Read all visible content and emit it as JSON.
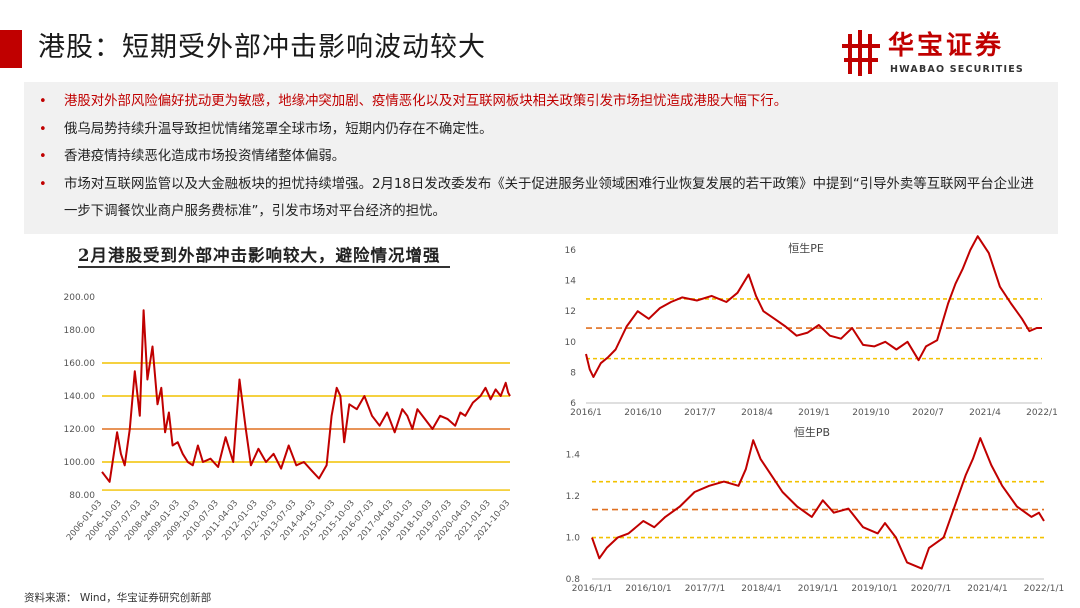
{
  "header": {
    "title": "港股：短期受外部冲击影响波动较大",
    "brand_cn": "华宝证券",
    "brand_en": "HWABAO SECURITIES",
    "accent_color": "#c00000"
  },
  "bullets": [
    {
      "text": "港股对外部风险偏好扰动更为敏感，地缘冲突加剧、疫情恶化以及对互联网板块相关政策引发市场担忧造成港股大幅下行。",
      "highlight": true
    },
    {
      "text": "俄乌局势持续升温导致担忧情绪笼罩全球市场，短期内仍存在不确定性。",
      "highlight": false
    },
    {
      "text": "香港疫情持续恶化造成市场投资情绪整体偏弱。",
      "highlight": false
    },
    {
      "text": "市场对互联网监管以及大金融板块的担忧持续增强。2月18日发改委发布《关于促进服务业领域困难行业恢复发展的若干政策》中提到“引导外卖等互联网平台企业进一步下调餐饮业商户服务费标准”，引发市场对平台经济的担忧。",
      "highlight": false
    }
  ],
  "source": "资料来源： Wind，华宝证券研究创新部",
  "chart_data": [
    {
      "type": "line",
      "title": "2月港股受到外部冲击影响较大，避险情况增强",
      "line_color": "#c00000",
      "y_ticks": [
        "200.00",
        "180.00",
        "160.00",
        "140.00",
        "120.00",
        "100.00",
        "80.00"
      ],
      "ylim": [
        80,
        200
      ],
      "x_ticks": [
        "2006-01-03",
        "2006-10-03",
        "2007-07-03",
        "2008-04-03",
        "2009-01-03",
        "2009-10-03",
        "2010-07-03",
        "2011-04-03",
        "2012-01-03",
        "2012-10-03",
        "2013-07-03",
        "2014-04-03",
        "2015-01-03",
        "2015-10-03",
        "2016-07-03",
        "2017-04-03",
        "2018-01-03",
        "2018-10-03",
        "2019-07-03",
        "2020-04-03",
        "2021-01-03",
        "2021-10-03"
      ],
      "xlim": [
        2006.0,
        2022.17
      ],
      "reference_lines": [
        {
          "y": 160,
          "color": "#f2c200"
        },
        {
          "y": 140,
          "color": "#f2c200"
        },
        {
          "y": 120,
          "color": "#e07020"
        },
        {
          "y": 100,
          "color": "#f2c200"
        },
        {
          "y": 83,
          "color": "#f2c200"
        }
      ],
      "series": [
        {
          "x": [
            2006.0,
            2006.3,
            2006.6,
            2006.75,
            2006.9,
            2007.1,
            2007.3,
            2007.5,
            2007.65,
            2007.8,
            2008.0,
            2008.2,
            2008.35,
            2008.5,
            2008.65,
            2008.8,
            2009.0,
            2009.2,
            2009.4,
            2009.6,
            2009.8,
            2010.0,
            2010.3,
            2010.6,
            2010.9,
            2011.2,
            2011.45,
            2011.7,
            2011.9,
            2012.2,
            2012.5,
            2012.8,
            2013.1,
            2013.4,
            2013.7,
            2014.0,
            2014.3,
            2014.6,
            2014.9,
            2015.1,
            2015.3,
            2015.45,
            2015.6,
            2015.8,
            2016.1,
            2016.4,
            2016.7,
            2017.0,
            2017.3,
            2017.6,
            2017.9,
            2018.1,
            2018.3,
            2018.5,
            2018.8,
            2019.1,
            2019.4,
            2019.7,
            2020.0,
            2020.2,
            2020.4,
            2020.7,
            2021.0,
            2021.2,
            2021.4,
            2021.6,
            2021.8,
            2022.0,
            2022.1,
            2022.17
          ],
          "y": [
            94,
            88,
            118,
            105,
            98,
            120,
            155,
            128,
            192,
            150,
            170,
            135,
            145,
            118,
            130,
            110,
            112,
            105,
            100,
            98,
            110,
            100,
            102,
            97,
            115,
            100,
            150,
            120,
            98,
            108,
            100,
            105,
            96,
            110,
            98,
            100,
            95,
            90,
            98,
            128,
            145,
            140,
            112,
            135,
            132,
            140,
            128,
            122,
            130,
            118,
            132,
            128,
            120,
            132,
            126,
            120,
            128,
            126,
            122,
            130,
            128,
            136,
            140,
            145,
            138,
            144,
            140,
            148,
            142,
            140
          ]
        }
      ]
    },
    {
      "type": "line",
      "title": "恒生PE",
      "line_color": "#c00000",
      "y_ticks": [
        "16",
        "14",
        "12",
        "10",
        "8",
        "6"
      ],
      "ylim": [
        6,
        16
      ],
      "x_ticks": [
        "2016/1",
        "2016/10",
        "2017/7",
        "2018/4",
        "2019/1",
        "2019/10",
        "2020/7",
        "2021/4",
        "2022/1"
      ],
      "xlim": [
        2016.0,
        2022.17
      ],
      "reference_lines": [
        {
          "y": 12.8,
          "color": "#f2c200",
          "dashed": true
        },
        {
          "y": 10.9,
          "color": "#e07020",
          "dashed": true
        },
        {
          "y": 8.9,
          "color": "#f2c200",
          "dashed": true
        }
      ],
      "series": [
        {
          "x": [
            2016.0,
            2016.05,
            2016.1,
            2016.2,
            2016.3,
            2016.4,
            2016.55,
            2016.7,
            2016.85,
            2017.0,
            2017.15,
            2017.3,
            2017.5,
            2017.7,
            2017.9,
            2018.05,
            2018.2,
            2018.3,
            2018.4,
            2018.55,
            2018.7,
            2018.85,
            2019.0,
            2019.15,
            2019.3,
            2019.45,
            2019.6,
            2019.75,
            2019.9,
            2020.05,
            2020.2,
            2020.35,
            2020.5,
            2020.6,
            2020.75,
            2020.9,
            2021.0,
            2021.1,
            2021.2,
            2021.3,
            2021.45,
            2021.6,
            2021.75,
            2021.9,
            2022.0,
            2022.1,
            2022.17
          ],
          "y": [
            9.2,
            8.2,
            7.7,
            8.6,
            9.0,
            9.5,
            11.0,
            12.0,
            11.5,
            12.2,
            12.6,
            12.9,
            12.7,
            13.0,
            12.6,
            13.2,
            14.4,
            13.0,
            12.0,
            11.5,
            11.0,
            10.4,
            10.6,
            11.1,
            10.4,
            10.2,
            10.9,
            9.8,
            9.7,
            10.0,
            9.5,
            10.0,
            8.8,
            9.7,
            10.1,
            12.5,
            13.8,
            14.8,
            16.0,
            16.9,
            15.8,
            13.6,
            12.5,
            11.5,
            10.7,
            10.9,
            10.9
          ]
        }
      ]
    },
    {
      "type": "line",
      "title": "恒生PB",
      "line_color": "#c00000",
      "y_ticks": [
        "1.4",
        "1.2",
        "1.0",
        "0.8"
      ],
      "ylim": [
        0.8,
        1.5
      ],
      "x_ticks": [
        "2016/1/1",
        "2016/10/1",
        "2017/7/1",
        "2018/4/1",
        "2019/1/1",
        "2019/10/1",
        "2020/7/1",
        "2021/4/1",
        "2022/1/1"
      ],
      "xlim": [
        2016.0,
        2022.17
      ],
      "reference_lines": [
        {
          "y": 1.27,
          "color": "#f2c200",
          "dashed": true
        },
        {
          "y": 1.135,
          "color": "#e07020",
          "dashed": true
        },
        {
          "y": 1.0,
          "color": "#f2c200",
          "dashed": true
        }
      ],
      "series": [
        {
          "x": [
            2016.0,
            2016.1,
            2016.2,
            2016.35,
            2016.5,
            2016.7,
            2016.85,
            2017.0,
            2017.2,
            2017.4,
            2017.6,
            2017.8,
            2018.0,
            2018.1,
            2018.2,
            2018.3,
            2018.45,
            2018.6,
            2018.8,
            2019.0,
            2019.15,
            2019.3,
            2019.5,
            2019.7,
            2019.9,
            2020.0,
            2020.15,
            2020.3,
            2020.5,
            2020.6,
            2020.8,
            2020.95,
            2021.1,
            2021.2,
            2021.3,
            2021.45,
            2021.6,
            2021.8,
            2022.0,
            2022.1,
            2022.17
          ],
          "y": [
            1.0,
            0.9,
            0.95,
            1.0,
            1.02,
            1.08,
            1.05,
            1.1,
            1.15,
            1.22,
            1.25,
            1.27,
            1.25,
            1.33,
            1.47,
            1.38,
            1.3,
            1.22,
            1.15,
            1.1,
            1.18,
            1.12,
            1.14,
            1.05,
            1.02,
            1.07,
            1.0,
            0.88,
            0.85,
            0.95,
            1.0,
            1.15,
            1.3,
            1.38,
            1.48,
            1.35,
            1.25,
            1.15,
            1.1,
            1.12,
            1.08
          ]
        }
      ]
    }
  ]
}
